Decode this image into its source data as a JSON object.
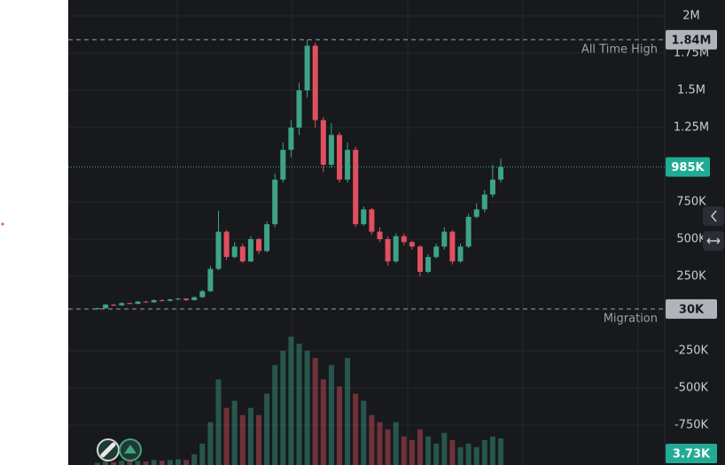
{
  "chart_data": {
    "type": "candlestick",
    "open": [
      30000,
      35000,
      60000,
      55000,
      70000,
      65000,
      80000,
      75000,
      90000,
      85000,
      95000,
      100000,
      90000,
      110000,
      150000,
      300000,
      550000,
      380000,
      450000,
      350000,
      500000,
      420000,
      600000,
      900000,
      1100000,
      1250000,
      1500000,
      1800000,
      1300000,
      1000000,
      1200000,
      900000,
      1100000,
      600000,
      700000,
      550000,
      500000,
      350000,
      520000,
      480000,
      450000,
      280000,
      380000,
      450000,
      550000,
      350000,
      450000,
      650000,
      700000,
      800000,
      900000
    ],
    "high": [
      40000,
      65000,
      65000,
      75000,
      75000,
      85000,
      85000,
      95000,
      95000,
      100000,
      105000,
      105000,
      115000,
      160000,
      320000,
      690000,
      560000,
      480000,
      470000,
      520000,
      510000,
      620000,
      940000,
      1150000,
      1300000,
      1550000,
      1840000,
      1820000,
      1320000,
      1280000,
      1220000,
      1150000,
      1120000,
      720000,
      710000,
      580000,
      520000,
      540000,
      540000,
      490000,
      460000,
      400000,
      470000,
      580000,
      560000,
      470000,
      670000,
      740000,
      830000,
      1000000,
      1040000
    ],
    "low": [
      25000,
      32000,
      50000,
      52000,
      62000,
      62000,
      72000,
      72000,
      82000,
      82000,
      90000,
      85000,
      88000,
      105000,
      145000,
      290000,
      360000,
      370000,
      340000,
      345000,
      400000,
      410000,
      580000,
      880000,
      1050000,
      1200000,
      1450000,
      1250000,
      950000,
      980000,
      880000,
      880000,
      580000,
      590000,
      530000,
      480000,
      320000,
      340000,
      460000,
      430000,
      250000,
      270000,
      370000,
      430000,
      330000,
      340000,
      440000,
      640000,
      680000,
      780000,
      880000
    ],
    "close": [
      35000,
      60000,
      55000,
      70000,
      65000,
      80000,
      75000,
      90000,
      85000,
      95000,
      100000,
      90000,
      110000,
      150000,
      300000,
      550000,
      380000,
      450000,
      350000,
      500000,
      420000,
      600000,
      900000,
      1100000,
      1250000,
      1500000,
      1800000,
      1300000,
      1000000,
      1200000,
      900000,
      1100000,
      600000,
      700000,
      550000,
      500000,
      350000,
      520000,
      480000,
      450000,
      280000,
      380000,
      450000,
      550000,
      350000,
      450000,
      650000,
      700000,
      800000,
      900000,
      985000
    ],
    "volume": [
      300,
      500,
      400,
      600,
      500,
      600,
      500,
      700,
      600,
      700,
      800,
      700,
      1500,
      3000,
      6000,
      12000,
      8000,
      9000,
      7000,
      8000,
      7000,
      10000,
      14000,
      16000,
      18000,
      17000,
      16000,
      15000,
      12000,
      14000,
      11000,
      15000,
      10000,
      9000,
      7000,
      6000,
      5000,
      6000,
      4000,
      3500,
      5000,
      4000,
      3000,
      4500,
      3500,
      2500,
      3000,
      2500,
      3500,
      4000,
      3730
    ],
    "volume_label": "3.73K",
    "last_price_label": "985K",
    "up_color": "#3fa287",
    "down_color": "#e0505e",
    "ylim": [
      -1018000,
      2107000
    ],
    "yticks": [
      {
        "value": 2000000,
        "label": "2M"
      },
      {
        "value": 1750000,
        "label": "1.75M"
      },
      {
        "value": 1500000,
        "label": "1.5M"
      },
      {
        "value": 1250000,
        "label": "1.25M"
      },
      {
        "value": 750000,
        "label": "750K"
      },
      {
        "value": 500000,
        "label": "500K"
      },
      {
        "value": 250000,
        "label": "250K"
      },
      {
        "value": -250000,
        "label": "-250K"
      },
      {
        "value": -500000,
        "label": "-500K"
      },
      {
        "value": -750000,
        "label": "-750K"
      }
    ],
    "grid": true,
    "annotations": [
      {
        "value": 1840000,
        "label": "1.84M",
        "text": "All Time High"
      },
      {
        "value": 30000,
        "label": "30K",
        "text": "Migration"
      }
    ]
  }
}
